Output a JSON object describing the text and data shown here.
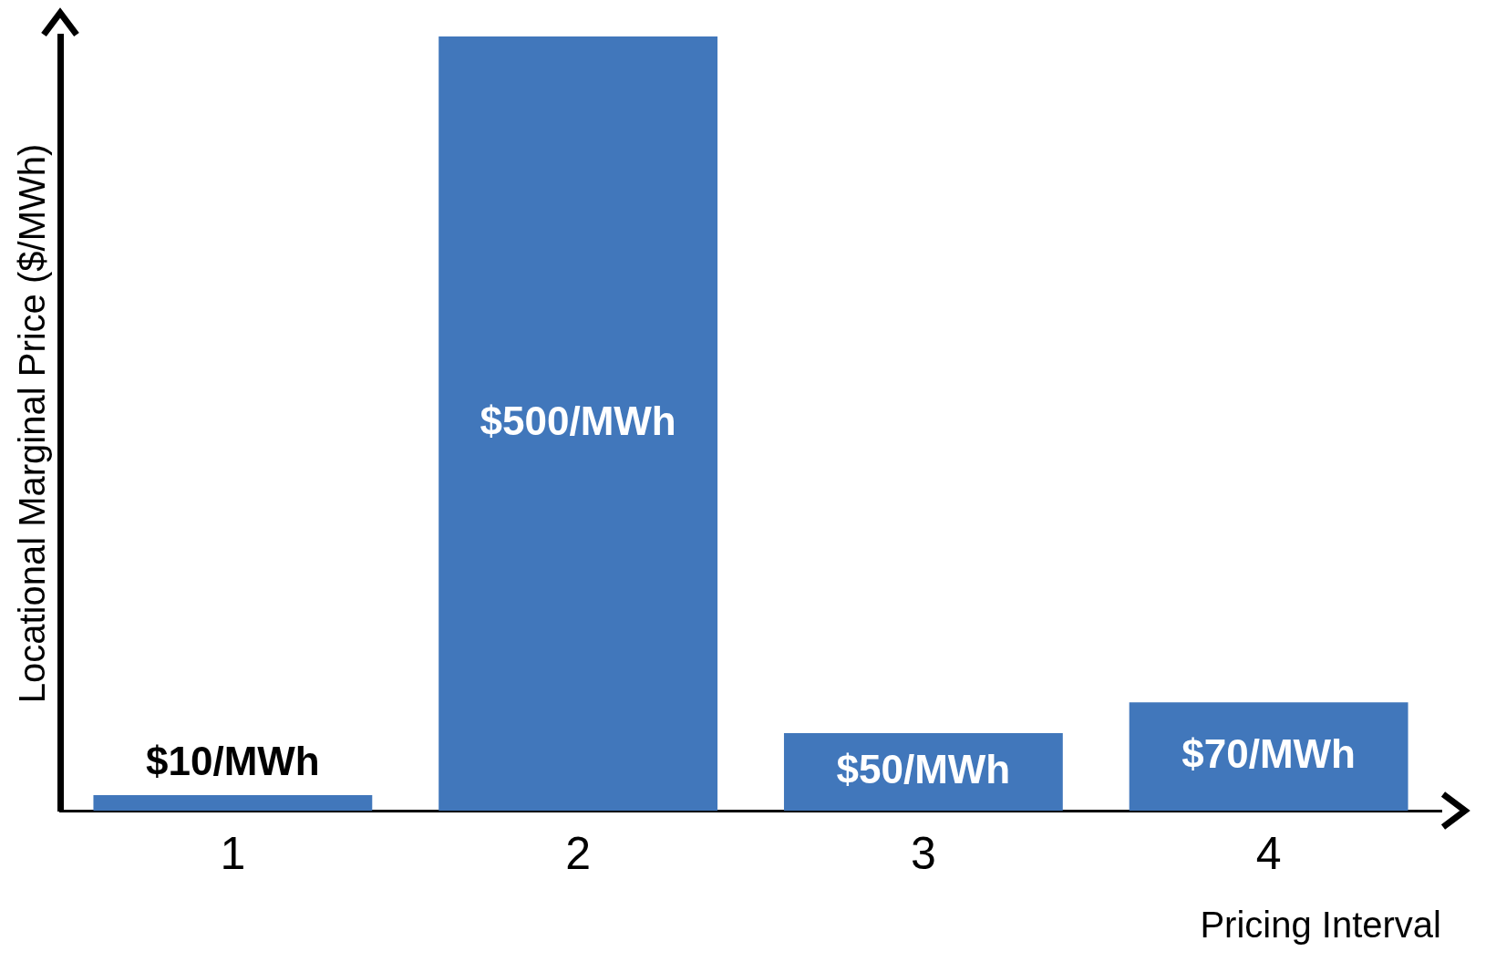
{
  "chart_data": {
    "type": "bar",
    "xlabel": "Pricing Interval",
    "ylabel": "Locational Marginal Price ($/MWh)",
    "categories": [
      "1",
      "2",
      "3",
      "4"
    ],
    "values": [
      10,
      500,
      50,
      70
    ],
    "value_labels": [
      "$10/MWh",
      "$500/MWh",
      "$50/MWh",
      "$70/MWh"
    ],
    "color": "#4177bb",
    "tick_labels": "x",
    "grid": false,
    "legend": false
  }
}
